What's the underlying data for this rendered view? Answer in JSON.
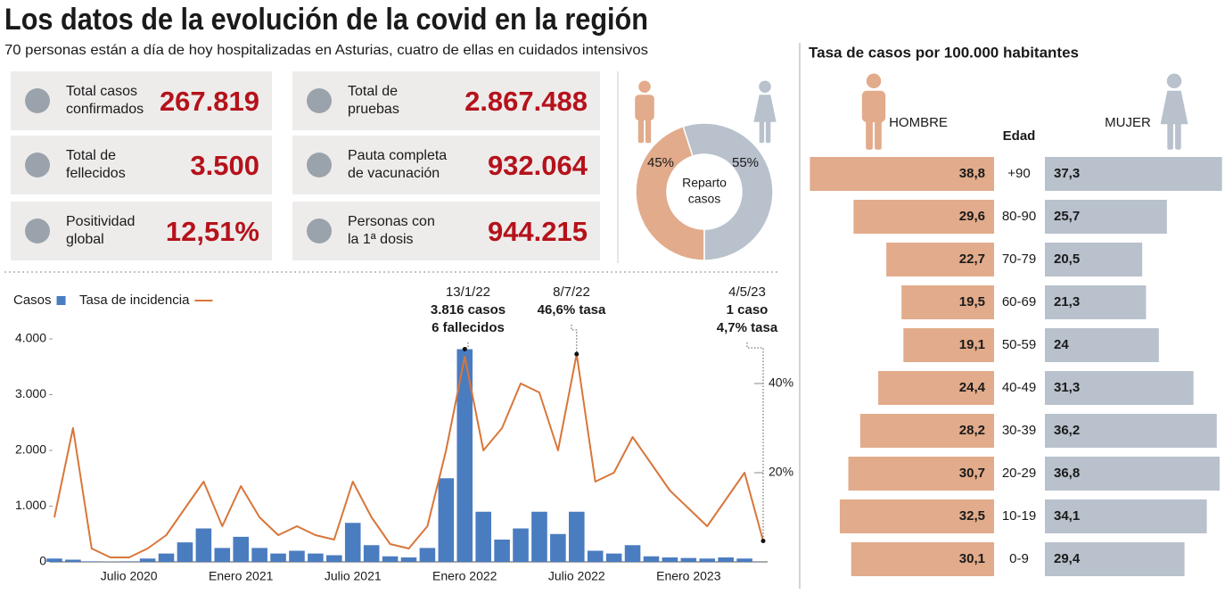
{
  "header": {
    "title": "Los datos de la evolución de la covid en la región",
    "subtitle": "70 personas están a día de hoy hospitalizadas en Asturias, cuatro de ellas en cuidados intensivos"
  },
  "stats": [
    {
      "label": [
        "Total casos",
        "confirmados"
      ],
      "value": "267.819"
    },
    {
      "label": [
        "Total de",
        "fellecidos"
      ],
      "value": "3.500"
    },
    {
      "label": [
        "Positividad",
        "global"
      ],
      "value": "12,51%"
    },
    {
      "label": [
        "Total de",
        "pruebas"
      ],
      "value": "2.867.488"
    },
    {
      "label": [
        "Pauta completa",
        "de vacunación"
      ],
      "value": "932.064"
    },
    {
      "label": [
        "Personas con",
        "la 1ª dosis"
      ],
      "value": "944.215"
    }
  ],
  "chart_data": [
    {
      "type": "combo",
      "x": [
        "2020-03",
        "2020-04",
        "2020-05",
        "2020-06",
        "2020-07",
        "2020-08",
        "2020-09",
        "2020-10",
        "2020-11",
        "2020-12",
        "2021-01",
        "2021-02",
        "2021-03",
        "2021-04",
        "2021-05",
        "2021-06",
        "2021-07",
        "2021-08",
        "2021-09",
        "2021-10",
        "2021-11",
        "2021-12",
        "2022-01",
        "2022-02",
        "2022-03",
        "2022-04",
        "2022-05",
        "2022-06",
        "2022-07",
        "2022-08",
        "2022-09",
        "2022-10",
        "2022-11",
        "2022-12",
        "2023-01",
        "2023-02",
        "2023-03",
        "2023-04",
        "2023-05"
      ],
      "series": [
        {
          "name": "Casos",
          "type": "bar",
          "color": "#4a7cc0",
          "values": [
            60,
            40,
            10,
            5,
            10,
            60,
            150,
            350,
            600,
            250,
            450,
            250,
            150,
            200,
            150,
            120,
            700,
            300,
            100,
            80,
            250,
            1500,
            3816,
            900,
            400,
            600,
            900,
            500,
            900,
            200,
            150,
            300,
            100,
            80,
            70,
            60,
            80,
            60,
            1
          ]
        },
        {
          "name": "Tasa de incidencia",
          "type": "line",
          "color": "#d8763a",
          "axis": "y2",
          "values": [
            10,
            30,
            3,
            1,
            1,
            3,
            6,
            12,
            18,
            8,
            17,
            10,
            6,
            8,
            6,
            5,
            18,
            10,
            4,
            3,
            8,
            25,
            46,
            25,
            30,
            40,
            38,
            25,
            46.6,
            18,
            20,
            28,
            22,
            16,
            12,
            8,
            14,
            20,
            4.7
          ]
        }
      ],
      "ylim": [
        0,
        4000
      ],
      "yticks": [
        0,
        {
          "value": 1000,
          "label": "1.000"
        },
        {
          "value": 2000,
          "label": "2.000"
        },
        {
          "value": 3000,
          "label": "3.000"
        },
        {
          "value": 4000,
          "label": "4.000"
        }
      ],
      "y2lim": [
        0,
        50
      ],
      "y2ticks": [
        {
          "value": 20,
          "label": "20%"
        },
        {
          "value": 40,
          "label": "40%"
        }
      ],
      "xticks": [
        {
          "value": "2020-07",
          "label": "Julio 2020"
        },
        {
          "value": "2021-01",
          "label": "Enero 2021"
        },
        {
          "value": "2021-07",
          "label": "Julio 2021"
        },
        {
          "value": "2022-01",
          "label": "Enero 2022"
        },
        {
          "value": "2022-07",
          "label": "Julio 2022"
        },
        {
          "value": "2023-01",
          "label": "Enero 2023"
        }
      ],
      "annotations": [
        {
          "lines": [
            "13/1/22",
            "3.816 casos",
            "6 fallecidos"
          ]
        },
        {
          "lines": [
            "8/7/22",
            "46,6% tasa"
          ]
        },
        {
          "lines": [
            "4/5/23",
            "1 caso",
            "4,7% tasa"
          ]
        }
      ]
    },
    {
      "type": "pie",
      "values": [
        45,
        55
      ],
      "value_labels": [
        "45%",
        "55%"
      ],
      "colors": [
        "#e2ab8b",
        "#b8c1cc"
      ],
      "center_label": [
        "Reparto",
        "casos"
      ]
    },
    {
      "type": "pyramid",
      "title": "Tasa de casos por 100.000 habitantes",
      "y_label": "Edad",
      "categories": [
        "+90",
        "80-90",
        "70-79",
        "60-69",
        "50-59",
        "40-49",
        "30-39",
        "20-29",
        "10-19",
        "0-9"
      ],
      "series": [
        {
          "name": "HOMBRE",
          "color": "#e2ab8b",
          "values": [
            38.8,
            29.6,
            22.7,
            19.5,
            19.1,
            24.4,
            28.2,
            30.7,
            32.5,
            30.1
          ],
          "value_labels": [
            "38,8",
            "29,6",
            "22,7",
            "19,5",
            "19,1",
            "24,4",
            "28,2",
            "30,7",
            "32,5",
            "30,1"
          ]
        },
        {
          "name": "MUJER",
          "color": "#b8c1cc",
          "values": [
            37.3,
            25.7,
            20.5,
            21.3,
            24,
            31.3,
            36.2,
            36.8,
            34.1,
            29.4
          ],
          "value_labels": [
            "37,3",
            "25,7",
            "20,5",
            "21,3",
            "24",
            "31,3",
            "36,2",
            "36,8",
            "34,1",
            "29,4"
          ]
        }
      ],
      "xlim": [
        0,
        40
      ]
    }
  ]
}
